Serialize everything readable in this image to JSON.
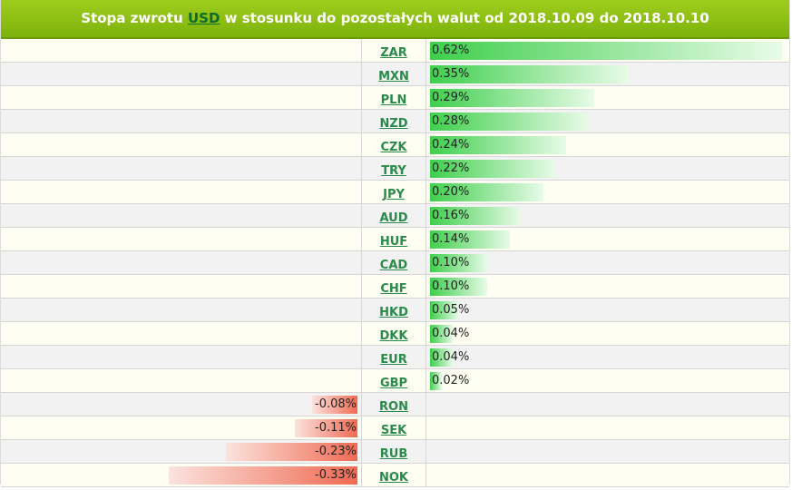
{
  "header": {
    "prefix": "Stopa zwrotu ",
    "currency": "USD",
    "suffix": " w stosunku do pozostałych walut od 2018.10.09 do 2018.10.10"
  },
  "colors": {
    "header_bg": "#8cc011",
    "positive_bar": "#3fcf4c",
    "negative_bar": "#f06a52",
    "link": "#2a8a4a"
  },
  "chart_data": {
    "type": "bar",
    "orientation": "horizontal-diverging",
    "unit": "%",
    "categories": [
      "ZAR",
      "MXN",
      "PLN",
      "NZD",
      "CZK",
      "TRY",
      "JPY",
      "AUD",
      "HUF",
      "CAD",
      "CHF",
      "HKD",
      "DKK",
      "EUR",
      "GBP",
      "RON",
      "SEK",
      "RUB",
      "NOK"
    ],
    "values": [
      0.62,
      0.35,
      0.29,
      0.28,
      0.24,
      0.22,
      0.2,
      0.16,
      0.14,
      0.1,
      0.1,
      0.05,
      0.04,
      0.04,
      0.02,
      -0.08,
      -0.11,
      -0.23,
      -0.33
    ],
    "labels": [
      "0.62%",
      "0.35%",
      "0.29%",
      "0.28%",
      "0.24%",
      "0.22%",
      "0.20%",
      "0.16%",
      "0.14%",
      "0.10%",
      "0.10%",
      "0.05%",
      "0.04%",
      "0.04%",
      "0.02%",
      "-0.08%",
      "-0.11%",
      "-0.23%",
      "-0.33%"
    ],
    "title": "Stopa zwrotu USD w stosunku do pozostałych walut od 2018.10.09 do 2018.10.10"
  }
}
